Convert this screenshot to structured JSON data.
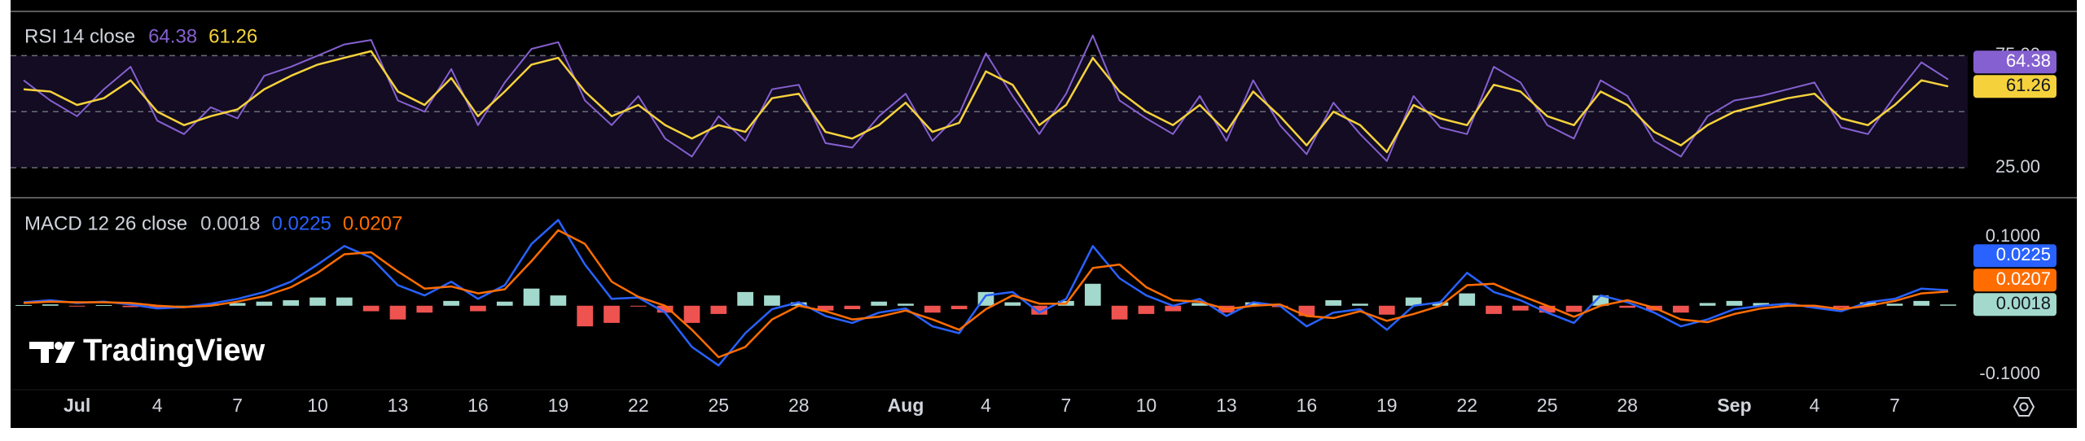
{
  "watermark": "TradingView",
  "chart_data": [
    {
      "type": "line",
      "title": "RSI 14 close",
      "ylim": [
        12,
        94
      ],
      "yticks": [
        {
          "value": 75,
          "label": "75.00"
        },
        {
          "value": 25,
          "label": "25.00"
        }
      ],
      "hlines": [
        75,
        50,
        25
      ],
      "band_color": "#130c22",
      "series": [
        {
          "color": "#8560d0",
          "values": [
            64,
            55,
            48,
            60,
            70,
            46,
            40,
            52,
            47,
            66,
            70,
            75,
            80,
            82,
            55,
            50,
            69,
            44,
            63,
            78,
            81,
            55,
            44,
            57,
            38,
            30,
            48,
            37,
            60,
            62,
            36,
            34,
            48,
            58,
            37,
            49,
            76,
            57,
            40,
            58,
            84,
            55,
            47,
            40,
            57,
            37,
            64,
            44,
            31,
            54,
            40,
            28,
            57,
            43,
            40,
            70,
            63,
            44,
            38,
            64,
            57,
            37,
            30,
            48,
            55,
            57,
            60,
            63,
            43,
            40,
            57,
            72,
            64.38
          ]
        },
        {
          "color": "#f5d23c",
          "values": [
            60,
            59,
            53,
            56,
            64,
            50,
            44,
            48,
            51,
            60,
            66,
            71,
            74,
            77,
            59,
            53,
            65,
            48,
            59,
            71,
            74,
            59,
            48,
            53,
            44,
            38,
            44,
            41,
            56,
            58,
            41,
            38,
            44,
            54,
            41,
            45,
            68,
            62,
            44,
            53,
            74,
            59,
            50,
            44,
            53,
            41,
            59,
            48,
            35,
            50,
            44,
            32,
            53,
            47,
            44,
            62,
            59,
            48,
            44,
            59,
            53,
            41,
            35,
            44,
            50,
            53,
            56,
            58,
            47,
            44,
            53,
            64,
            61.26
          ]
        }
      ]
    },
    {
      "type": "line",
      "title": "MACD 12 26 close",
      "ylim": [
        -0.12,
        0.155
      ],
      "yticks": [
        {
          "value": 0.1,
          "label": "0.1000"
        },
        {
          "value": -0.1,
          "label": "-0.1000"
        }
      ],
      "categories": [
        null,
        null,
        "Jul",
        null,
        null,
        "4",
        null,
        null,
        "7",
        null,
        null,
        "10",
        null,
        null,
        "13",
        null,
        null,
        "16",
        null,
        null,
        "19",
        null,
        null,
        "22",
        null,
        null,
        "25",
        null,
        null,
        "28",
        null,
        null,
        null,
        "Aug",
        null,
        null,
        "4",
        null,
        null,
        "7",
        null,
        null,
        "10",
        null,
        null,
        "13",
        null,
        null,
        "16",
        null,
        null,
        "19",
        null,
        null,
        "22",
        null,
        null,
        "25",
        null,
        null,
        "28",
        null,
        null,
        null,
        "Sep",
        null,
        null,
        "4",
        null,
        null,
        "7",
        null,
        null
      ],
      "series": [
        {
          "type": "bar",
          "color": "#a3d9cc",
          "negative_color": "#ef5350",
          "values": [
            0.001,
            0.002,
            -0.001,
            0.001,
            -0.002,
            -0.004,
            0.0,
            0.003,
            0.004,
            0.006,
            0.008,
            0.012,
            0.012,
            -0.008,
            -0.02,
            -0.01,
            0.007,
            -0.008,
            0.006,
            0.025,
            0.015,
            -0.03,
            -0.025,
            -0.001,
            -0.01,
            -0.025,
            -0.012,
            0.02,
            0.015,
            0.005,
            -0.007,
            -0.005,
            0.006,
            0.003,
            -0.01,
            -0.005,
            0.02,
            0.005,
            -0.013,
            0.007,
            0.032,
            -0.02,
            -0.012,
            -0.008,
            0.004,
            -0.01,
            0.005,
            -0.002,
            -0.015,
            0.008,
            0.003,
            -0.013,
            0.012,
            0.005,
            0.018,
            -0.012,
            -0.007,
            -0.01,
            -0.009,
            0.015,
            -0.003,
            -0.007,
            -0.01,
            0.004,
            0.007,
            0.004,
            0.003,
            -0.003,
            -0.003,
            0.005,
            0.003,
            0.007,
            0.0018
          ]
        },
        {
          "color": "#2962ff",
          "values": [
            0.005,
            0.008,
            0.004,
            0.006,
            0.002,
            -0.004,
            -0.002,
            0.003,
            0.01,
            0.02,
            0.035,
            0.06,
            0.087,
            0.07,
            0.03,
            0.015,
            0.035,
            0.01,
            0.03,
            0.09,
            0.125,
            0.06,
            0.01,
            0.012,
            -0.01,
            -0.06,
            -0.087,
            -0.04,
            -0.005,
            0.005,
            -0.015,
            -0.025,
            -0.01,
            -0.004,
            -0.03,
            -0.04,
            0.015,
            0.02,
            -0.01,
            0.01,
            0.087,
            0.04,
            0.015,
            0.0,
            0.01,
            -0.015,
            0.005,
            0.0,
            -0.03,
            -0.01,
            -0.005,
            -0.035,
            0.0,
            0.005,
            0.048,
            0.02,
            0.008,
            -0.01,
            -0.025,
            0.015,
            0.005,
            -0.01,
            -0.03,
            -0.02,
            -0.005,
            0.0,
            0.003,
            -0.003,
            -0.008,
            0.005,
            0.01,
            0.025,
            0.0225
          ]
        },
        {
          "color": "#ff6d00",
          "values": [
            0.004,
            0.006,
            0.005,
            0.005,
            0.004,
            0.0,
            -0.002,
            0.0,
            0.006,
            0.014,
            0.027,
            0.048,
            0.075,
            0.078,
            0.05,
            0.025,
            0.028,
            0.018,
            0.024,
            0.065,
            0.11,
            0.09,
            0.035,
            0.013,
            0.0,
            -0.035,
            -0.075,
            -0.06,
            -0.02,
            0.0,
            -0.008,
            -0.02,
            -0.016,
            -0.007,
            -0.02,
            -0.035,
            -0.005,
            0.015,
            0.003,
            0.003,
            0.055,
            0.06,
            0.027,
            0.008,
            0.006,
            -0.005,
            0.0,
            0.002,
            -0.015,
            -0.018,
            -0.008,
            -0.022,
            -0.012,
            0.0,
            0.03,
            0.032,
            0.015,
            0.0,
            -0.016,
            0.0,
            0.008,
            -0.003,
            -0.02,
            -0.024,
            -0.012,
            -0.004,
            0.0,
            0.0,
            -0.005,
            0.0,
            0.007,
            0.018,
            0.0207
          ]
        }
      ]
    }
  ]
}
